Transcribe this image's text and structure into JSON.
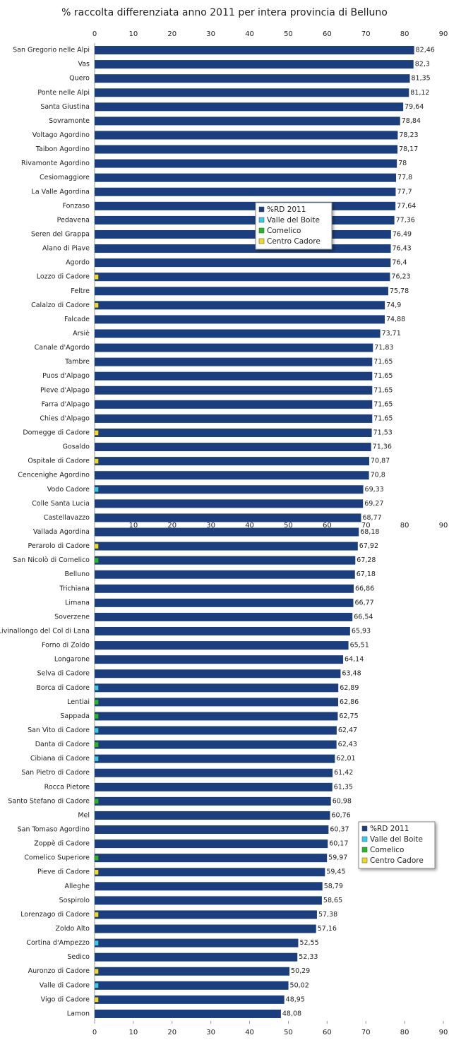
{
  "chart_data": {
    "type": "bar",
    "orientation": "horizontal",
    "title": "% raccolta differenziata anno 2011 per intera provincia di Belluno",
    "categories": [
      "San Gregorio nelle Alpi",
      "Vas",
      "Quero",
      "Ponte nelle Alpi",
      "Santa Giustina",
      "Sovramonte",
      "Voltago Agordino",
      "Taibon Agordino",
      "Rivamonte Agordino",
      "Cesiomaggiore",
      "La Valle Agordina",
      "Fonzaso",
      "Pedavena",
      "Seren del Grappa",
      "Alano di Piave",
      "Agordo",
      "Lozzo di Cadore",
      "Feltre",
      "Calalzo di Cadore",
      "Falcade",
      "Arsiè",
      "Canale d'Agordo",
      "Tambre",
      "Puos d'Alpago",
      "Pieve d'Alpago",
      "Farra d'Alpago",
      "Chies d'Alpago",
      "Domegge di Cadore",
      "Gosaldo",
      "Ospitale di Cadore",
      "Cencenighe Agordino",
      "Vodo Cadore",
      "Colle Santa Lucia",
      "Castellavazzo",
      "Vallada Agordina",
      "Perarolo di Cadore",
      "San Nicolò di Comelico",
      "Belluno",
      "Trichiana",
      "Limana",
      "Soverzene",
      "Livinallongo del Col di Lana",
      "Forno di Zoldo",
      "Longarone",
      "Selva di Cadore",
      "Borca di Cadore",
      "Lentiai",
      "Sappada",
      "San Vito di Cadore",
      "Danta di Cadore",
      "Cibiana di Cadore",
      "San Pietro di Cadore",
      "Rocca Pietore",
      "Santo Stefano di Cadore",
      "Mel",
      "San Tomaso Agordino",
      "Zoppè di Cadore",
      "Comelico Superiore",
      "Pieve di Cadore",
      "Alleghe",
      "Sospirolo",
      "Lorenzago di Cadore",
      "Zoldo Alto",
      "Cortina d'Ampezzo",
      "Sedico",
      "Auronzo di Cadore",
      "Valle di Cadore",
      "Vigo di Cadore",
      "Lamon"
    ],
    "series": [
      {
        "name": "%RD 2011",
        "color": "#1b3f7e",
        "values": [
          82.46,
          82.3,
          81.35,
          81.12,
          79.64,
          78.84,
          78.23,
          78.17,
          78,
          77.8,
          77.7,
          77.64,
          77.36,
          76.49,
          76.43,
          76.4,
          76.23,
          75.78,
          74.9,
          74.88,
          73.71,
          71.83,
          71.65,
          71.65,
          71.65,
          71.65,
          71.65,
          71.53,
          71.36,
          70.87,
          70.8,
          69.33,
          69.27,
          68.77,
          68.18,
          67.92,
          67.28,
          67.18,
          66.86,
          66.77,
          66.54,
          65.93,
          65.51,
          64.14,
          63.48,
          62.89,
          62.86,
          62.75,
          62.47,
          62.43,
          62.01,
          61.42,
          61.35,
          60.98,
          60.76,
          60.37,
          60.17,
          59.97,
          59.45,
          58.79,
          58.65,
          57.38,
          57.16,
          52.55,
          52.33,
          50.29,
          50.02,
          48.95,
          48.08
        ],
        "value_labels": [
          "82,46",
          "82,3",
          "81,35",
          "81,12",
          "79,64",
          "78,84",
          "78,23",
          "78,17",
          "78",
          "77,8",
          "77,7",
          "77,64",
          "77,36",
          "76,49",
          "76,43",
          "76,4",
          "76,23",
          "75,78",
          "74,9",
          "74,88",
          "73,71",
          "71,83",
          "71,65",
          "71,65",
          "71,65",
          "71,65",
          "71,65",
          "71,53",
          "71,36",
          "70,87",
          "70,8",
          "69,33",
          "69,27",
          "68,77",
          "68,18",
          "67,92",
          "67,28",
          "67,18",
          "66,86",
          "66,77",
          "66,54",
          "65,93",
          "65,51",
          "64,14",
          "63,48",
          "62,89",
          "62,86",
          "62,75",
          "62,47",
          "62,43",
          "62,01",
          "61,42",
          "61,35",
          "60,98",
          "60,76",
          "60,37",
          "60,17",
          "59,97",
          "59,45",
          "58,79",
          "58,65",
          "57,38",
          "57,16",
          "52,55",
          "52,33",
          "50,29",
          "50,02",
          "48,95",
          "48,08"
        ]
      },
      {
        "name": "Valle del Boite",
        "color": "#33ccee",
        "values": [
          null,
          null,
          null,
          null,
          null,
          null,
          null,
          null,
          null,
          null,
          null,
          null,
          null,
          null,
          null,
          null,
          null,
          null,
          null,
          null,
          null,
          null,
          null,
          null,
          null,
          null,
          null,
          null,
          null,
          null,
          null,
          1,
          null,
          null,
          null,
          null,
          null,
          null,
          null,
          null,
          null,
          null,
          null,
          null,
          null,
          1,
          null,
          null,
          1,
          null,
          1,
          null,
          null,
          null,
          null,
          null,
          null,
          null,
          null,
          null,
          null,
          null,
          null,
          1,
          null,
          null,
          1,
          null,
          null
        ]
      },
      {
        "name": "Comelico",
        "color": "#22bb22",
        "values": [
          null,
          null,
          null,
          null,
          null,
          null,
          null,
          null,
          null,
          null,
          null,
          null,
          null,
          null,
          null,
          null,
          null,
          null,
          null,
          null,
          null,
          null,
          null,
          null,
          null,
          null,
          null,
          null,
          null,
          null,
          null,
          null,
          null,
          null,
          null,
          null,
          1,
          null,
          null,
          null,
          null,
          null,
          null,
          null,
          null,
          null,
          1,
          1,
          null,
          1,
          null,
          null,
          null,
          1,
          null,
          null,
          null,
          1,
          null,
          null,
          null,
          null,
          null,
          null,
          null,
          null,
          null,
          null,
          null
        ]
      },
      {
        "name": "Centro Cadore",
        "color": "#eedd22",
        "values": [
          null,
          null,
          null,
          null,
          null,
          null,
          null,
          null,
          null,
          null,
          null,
          null,
          null,
          null,
          null,
          null,
          1,
          null,
          1,
          null,
          null,
          null,
          null,
          null,
          null,
          null,
          null,
          1,
          null,
          1,
          null,
          null,
          null,
          null,
          null,
          1,
          null,
          null,
          null,
          null,
          null,
          null,
          null,
          null,
          null,
          null,
          null,
          null,
          null,
          null,
          null,
          null,
          null,
          null,
          null,
          null,
          null,
          null,
          1,
          null,
          null,
          1,
          null,
          null,
          null,
          1,
          null,
          1,
          null
        ]
      }
    ],
    "xlim": [
      0,
      90
    ],
    "xticks": [
      0,
      10,
      20,
      30,
      40,
      50,
      60,
      70,
      80,
      90
    ]
  }
}
